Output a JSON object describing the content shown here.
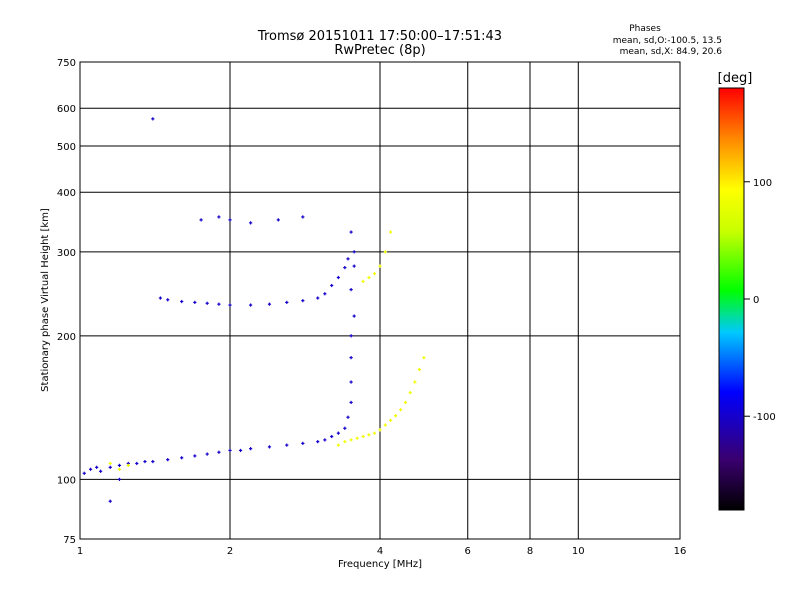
{
  "chart_data": {
    "type": "scatter",
    "title": "Tromsø 20151011 17:50:00–17:51:43",
    "subtitle": "RwPretec (8p)",
    "xlabel": "Frequency [MHz]",
    "ylabel": "Stationary phase Virtual Height [km]",
    "x_scale": "log",
    "y_scale": "log",
    "xlim": [
      1,
      16
    ],
    "ylim": [
      75,
      750
    ],
    "x_ticks": [
      1,
      2,
      4,
      6,
      8,
      10,
      16
    ],
    "y_ticks": [
      75,
      100,
      200,
      300,
      400,
      500,
      600,
      750
    ],
    "x_gridlines": [
      2,
      4,
      6,
      8,
      10
    ],
    "y_gridlines": [
      100,
      200,
      300,
      400,
      500,
      600
    ],
    "grid": true,
    "phase_info": {
      "heading": "Phases",
      "line1": "mean, sd,O:-100.5, 13.5",
      "line2": "mean, sd,X:  84.9, 20.6"
    },
    "colorbar": {
      "label": "[deg]",
      "ticks": [
        100,
        0,
        -100
      ],
      "range": [
        -180,
        180
      ],
      "colormap": "rainbow (black to red)"
    },
    "series": [
      {
        "mode": "O",
        "mean_phase_deg": -100.5,
        "points": [
          [
            1.02,
            103
          ],
          [
            1.05,
            105
          ],
          [
            1.08,
            106
          ],
          [
            1.1,
            104
          ],
          [
            1.15,
            106
          ],
          [
            1.2,
            107
          ],
          [
            1.25,
            108
          ],
          [
            1.3,
            108
          ],
          [
            1.35,
            109
          ],
          [
            1.4,
            109
          ],
          [
            1.5,
            110
          ],
          [
            1.6,
            111
          ],
          [
            1.7,
            112
          ],
          [
            1.8,
            113
          ],
          [
            1.9,
            114
          ],
          [
            2.0,
            115
          ],
          [
            2.1,
            115
          ],
          [
            2.2,
            116
          ],
          [
            2.4,
            117
          ],
          [
            2.6,
            118
          ],
          [
            2.8,
            119
          ],
          [
            3.0,
            120
          ],
          [
            3.1,
            121
          ],
          [
            3.2,
            123
          ],
          [
            3.3,
            125
          ],
          [
            3.4,
            128
          ],
          [
            3.45,
            135
          ],
          [
            3.5,
            145
          ],
          [
            3.5,
            160
          ],
          [
            3.5,
            180
          ],
          [
            3.5,
            200
          ],
          [
            3.55,
            220
          ],
          [
            3.5,
            250
          ],
          [
            3.55,
            280
          ],
          [
            3.55,
            300
          ],
          [
            3.5,
            330
          ],
          [
            1.45,
            240
          ],
          [
            1.5,
            238
          ],
          [
            1.6,
            236
          ],
          [
            1.7,
            235
          ],
          [
            1.8,
            234
          ],
          [
            1.9,
            233
          ],
          [
            2.0,
            232
          ],
          [
            2.2,
            232
          ],
          [
            2.4,
            233
          ],
          [
            2.6,
            235
          ],
          [
            2.8,
            237
          ],
          [
            3.0,
            240
          ],
          [
            3.1,
            245
          ],
          [
            3.2,
            255
          ],
          [
            3.3,
            265
          ],
          [
            3.4,
            278
          ],
          [
            3.45,
            290
          ],
          [
            1.75,
            350
          ],
          [
            1.9,
            355
          ],
          [
            2.0,
            350
          ],
          [
            2.2,
            345
          ],
          [
            2.5,
            350
          ],
          [
            2.8,
            355
          ],
          [
            1.4,
            570
          ],
          [
            1.2,
            100
          ],
          [
            1.15,
            90
          ]
        ]
      },
      {
        "mode": "X",
        "mean_phase_deg": 84.9,
        "points": [
          [
            3.3,
            118
          ],
          [
            3.4,
            120
          ],
          [
            3.5,
            121
          ],
          [
            3.6,
            122
          ],
          [
            3.7,
            123
          ],
          [
            3.8,
            124
          ],
          [
            3.9,
            125
          ],
          [
            4.0,
            127
          ],
          [
            4.1,
            130
          ],
          [
            4.2,
            133
          ],
          [
            4.3,
            136
          ],
          [
            4.4,
            140
          ],
          [
            4.5,
            145
          ],
          [
            4.6,
            152
          ],
          [
            4.7,
            160
          ],
          [
            4.8,
            170
          ],
          [
            4.9,
            180
          ],
          [
            3.7,
            260
          ],
          [
            3.8,
            265
          ],
          [
            3.9,
            270
          ],
          [
            4.0,
            280
          ],
          [
            4.1,
            300
          ],
          [
            4.2,
            330
          ],
          [
            1.15,
            108
          ],
          [
            1.2,
            105
          ],
          [
            1.25,
            107
          ]
        ]
      }
    ]
  }
}
